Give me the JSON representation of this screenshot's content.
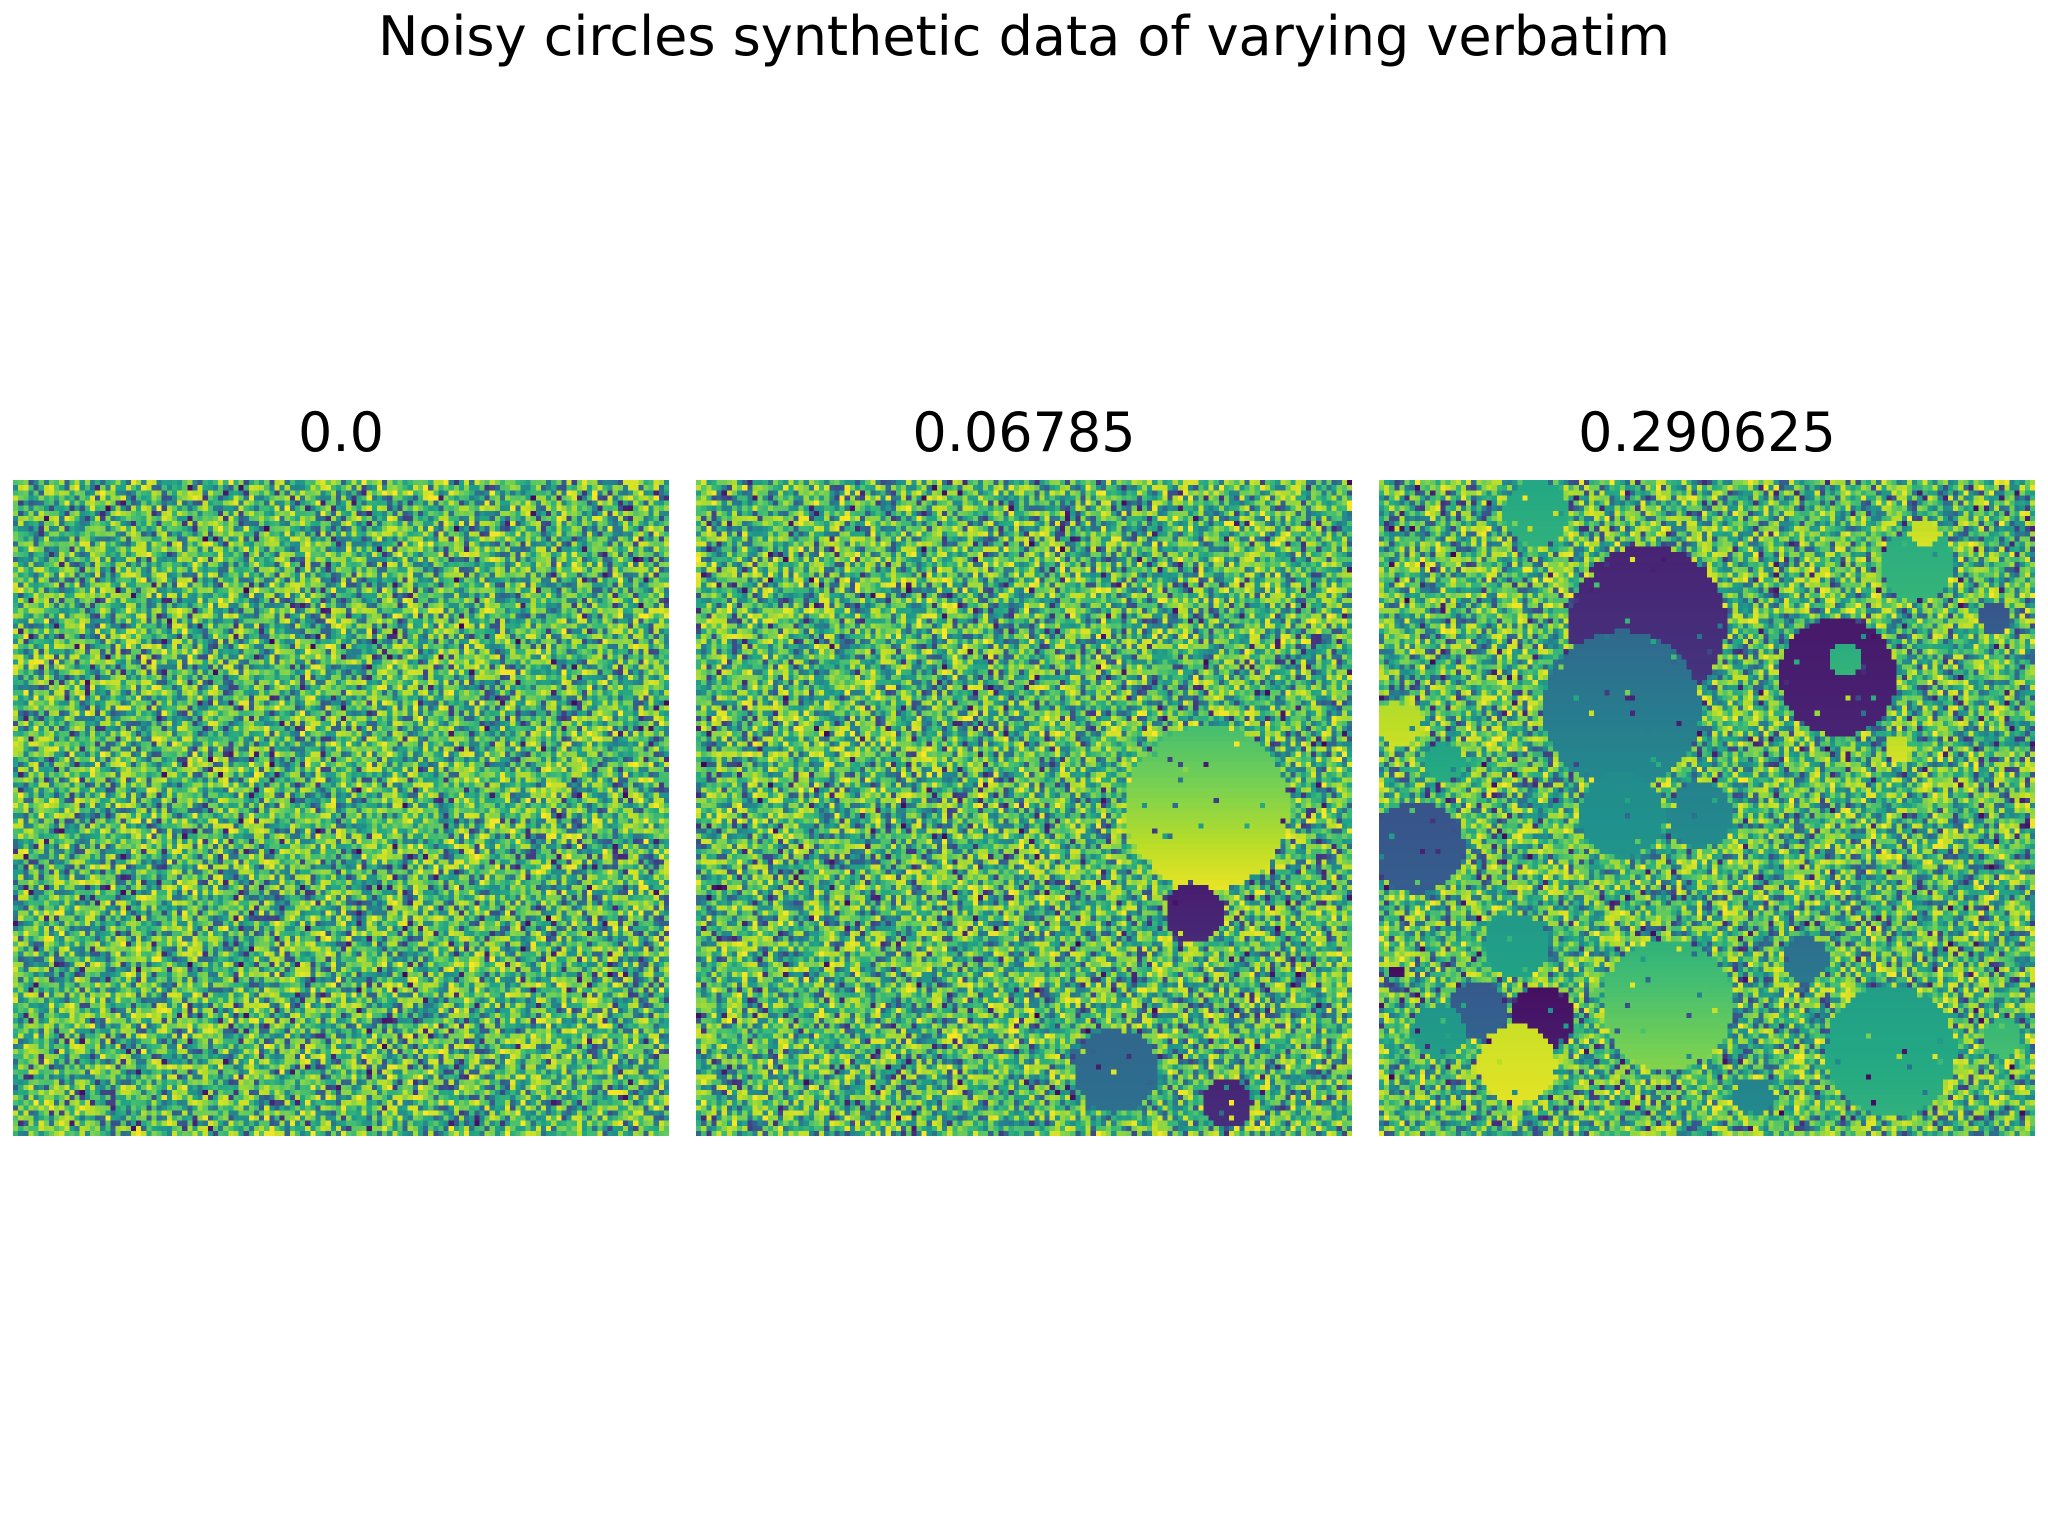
{
  "figure": {
    "title": "Noisy circles synthetic data of varying verbatim"
  },
  "chart_data": {
    "type": "heatmap",
    "colormap": "viridis",
    "grid": false,
    "axes": "off",
    "panels": [
      {
        "title": "0.0",
        "circles": []
      },
      {
        "title": "0.06785",
        "circles": [
          {
            "cx": 0.78,
            "cy": 0.5,
            "r": 0.125,
            "v0": 0.7,
            "v1": 0.97
          },
          {
            "cx": 0.76,
            "cy": 0.66,
            "r": 0.045,
            "v0": 0.08,
            "v1": 0.12
          },
          {
            "cx": 0.64,
            "cy": 0.9,
            "r": 0.065,
            "v0": 0.33,
            "v1": 0.37
          },
          {
            "cx": 0.81,
            "cy": 0.95,
            "r": 0.038,
            "v0": 0.1,
            "v1": 0.14
          }
        ]
      },
      {
        "title": "0.290625",
        "circles": [
          {
            "cx": 0.24,
            "cy": 0.05,
            "r": 0.05,
            "v0": 0.6,
            "v1": 0.64
          },
          {
            "cx": 0.82,
            "cy": 0.13,
            "r": 0.055,
            "v0": 0.62,
            "v1": 0.66
          },
          {
            "cx": 0.83,
            "cy": 0.08,
            "r": 0.022,
            "v0": 0.9,
            "v1": 0.94
          },
          {
            "cx": 0.41,
            "cy": 0.22,
            "r": 0.12,
            "v0": 0.1,
            "v1": 0.16
          },
          {
            "cx": 0.37,
            "cy": 0.35,
            "r": 0.12,
            "v0": 0.34,
            "v1": 0.48
          },
          {
            "cx": 0.7,
            "cy": 0.3,
            "r": 0.09,
            "v0": 0.07,
            "v1": 0.1
          },
          {
            "cx": 0.71,
            "cy": 0.275,
            "r": 0.025,
            "v0": 0.62,
            "v1": 0.66
          },
          {
            "cx": 0.94,
            "cy": 0.21,
            "r": 0.025,
            "v0": 0.26,
            "v1": 0.3
          },
          {
            "cx": 0.03,
            "cy": 0.37,
            "r": 0.035,
            "v0": 0.88,
            "v1": 0.92
          },
          {
            "cx": 0.1,
            "cy": 0.43,
            "r": 0.03,
            "v0": 0.58,
            "v1": 0.62
          },
          {
            "cx": 0.79,
            "cy": 0.41,
            "r": 0.02,
            "v0": 0.9,
            "v1": 0.94
          },
          {
            "cx": 0.06,
            "cy": 0.56,
            "r": 0.07,
            "v0": 0.26,
            "v1": 0.3
          },
          {
            "cx": 0.37,
            "cy": 0.51,
            "r": 0.065,
            "v0": 0.48,
            "v1": 0.52
          },
          {
            "cx": 0.49,
            "cy": 0.51,
            "r": 0.05,
            "v0": 0.44,
            "v1": 0.48
          },
          {
            "cx": 0.21,
            "cy": 0.71,
            "r": 0.05,
            "v0": 0.54,
            "v1": 0.58
          },
          {
            "cx": 0.65,
            "cy": 0.73,
            "r": 0.035,
            "v0": 0.36,
            "v1": 0.4
          },
          {
            "cx": 0.44,
            "cy": 0.8,
            "r": 0.1,
            "v0": 0.64,
            "v1": 0.82
          },
          {
            "cx": 0.25,
            "cy": 0.82,
            "r": 0.05,
            "v0": 0.04,
            "v1": 0.08
          },
          {
            "cx": 0.15,
            "cy": 0.81,
            "r": 0.045,
            "v0": 0.28,
            "v1": 0.32
          },
          {
            "cx": 0.09,
            "cy": 0.84,
            "r": 0.04,
            "v0": 0.52,
            "v1": 0.56
          },
          {
            "cx": 0.21,
            "cy": 0.89,
            "r": 0.06,
            "v0": 0.92,
            "v1": 0.96
          },
          {
            "cx": 0.03,
            "cy": 0.75,
            "r": 0.012,
            "v0": 0.02,
            "v1": 0.06
          },
          {
            "cx": 0.78,
            "cy": 0.87,
            "r": 0.1,
            "v0": 0.56,
            "v1": 0.64
          },
          {
            "cx": 0.95,
            "cy": 0.85,
            "r": 0.03,
            "v0": 0.66,
            "v1": 0.7
          },
          {
            "cx": 0.57,
            "cy": 0.94,
            "r": 0.03,
            "v0": 0.44,
            "v1": 0.48
          }
        ]
      }
    ]
  }
}
